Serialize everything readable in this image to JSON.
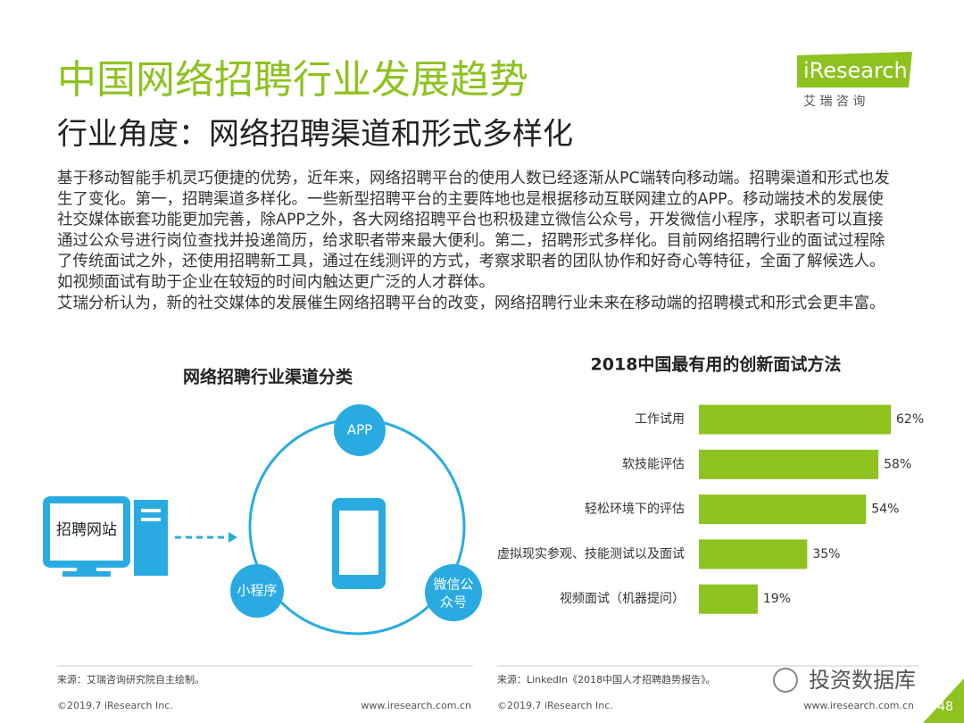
{
  "header": {
    "title": "中国网络招聘行业发展趋势",
    "subtitle": "行业角度：网络招聘渠道和形式多样化",
    "logo": {
      "brand": "iResearch",
      "name": "艾 瑞 咨 询"
    }
  },
  "body": {
    "lines": [
      "基于移动智能手机灵巧便捷的优势，近年来，网络招聘平台的使用人数已经逐渐从PC端转向移动端。招聘渠道和形式也发",
      "生了变化。第一，招聘渠道多样化。一些新型招聘平台的主要阵地也是根据移动互联网建立的APP。移动端技术的发展使",
      "社交媒体嵌套功能更加完善，除APP之外，各大网络招聘平台也积极建立微信公众号，开发微信小程序，求职者可以直接",
      "通过公众号进行岗位查找并投递简历，给求职者带来最大便利。第二，招聘形式多样化。目前网络招聘行业的面试过程除",
      "了传统面试之外，还使用招聘新工具，通过在线测评的方式，考察求职者的团队协作和好奇心等特征，全面了解候选人。",
      "如视频面试有助于企业在较短的时间内触达更广泛的人才群体。",
      "艾瑞分析认为，新的社交媒体的发展催生网络招聘平台的改变，网络招聘行业未来在移动端的招聘模式和形式会更丰富。"
    ]
  },
  "diagram": {
    "title": "网络招聘行业渠道分类",
    "website": "招聘网站",
    "app": "APP",
    "mini_program": "小程序",
    "wechat_lines": [
      "微信公",
      "众号"
    ],
    "source": "来源：艾瑞咨询研究院自主绘制。"
  },
  "chart_data": {
    "type": "bar",
    "orientation": "horizontal",
    "title": "2018中国最有用的创新面试方法",
    "categories": [
      "工作试用",
      "软技能评估",
      "轻松环境下的评估",
      "虚拟现实参观、技能测试以及面试",
      "视频面试（机器提问）"
    ],
    "values": [
      62,
      58,
      54,
      35,
      19
    ],
    "value_labels": [
      "62%",
      "58%",
      "54%",
      "35%",
      "19%"
    ],
    "color": "#8dc21f",
    "source": "来源：LinkedIn《2018中国人才招聘趋势报告》。"
  },
  "footer": {
    "copyright_left": "©2019.7 iResearch Inc.",
    "url_left": "www.iresearch.com.cn",
    "copyright_right": "©2019.7 iResearch Inc.",
    "url_right": "www.iresearch.com.cn",
    "watermark": "投资数据库",
    "page": "48"
  }
}
